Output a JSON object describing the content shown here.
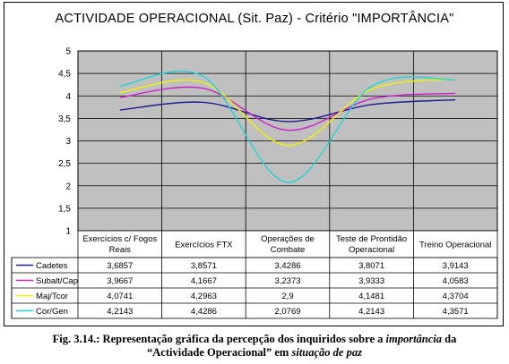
{
  "chart_data": {
    "type": "line",
    "title": "ACTIVIDADE OPERACIONAL (Sit. Paz) - Critério \"IMPORTÂNCIA\"",
    "categories": [
      [
        "Exercícios c/ Fogos",
        "Reais"
      ],
      [
        "Exercícios FTX"
      ],
      [
        "Operações de",
        "Combate"
      ],
      [
        "Teste de Prontidão",
        "Operacional"
      ],
      [
        "Treino Operacional"
      ]
    ],
    "ylim": [
      1,
      5
    ],
    "yticks": [
      "1",
      "1,5",
      "2",
      "2,5",
      "3",
      "3,5",
      "4",
      "4,5",
      "5"
    ],
    "grid": true,
    "legend": "table-left",
    "series": [
      {
        "name": "Cadetes",
        "color": "#1F1F8F",
        "values": [
          3.6857,
          3.8571,
          3.4286,
          3.8071,
          3.9143
        ],
        "labels": [
          "3,6857",
          "3,8571",
          "3,4286",
          "3,8071",
          "3,9143"
        ]
      },
      {
        "name": "Subalt/Cap",
        "color": "#CC22CC",
        "values": [
          3.9667,
          4.1667,
          3.2373,
          3.9333,
          4.0583
        ],
        "labels": [
          "3,9667",
          "4,1667",
          "3,2373",
          "3,9333",
          "4,0583"
        ]
      },
      {
        "name": "Maj/Tcor",
        "color": "#F2F200",
        "values": [
          4.0741,
          4.2963,
          2.9,
          4.1481,
          4.3704
        ],
        "labels": [
          "4,0741",
          "4,2963",
          "2,9",
          "4,1481",
          "4,3704"
        ]
      },
      {
        "name": "Cor/Gen",
        "color": "#22D3D3",
        "values": [
          4.2143,
          4.4286,
          2.0769,
          4.2143,
          4.3571
        ],
        "labels": [
          "4,2143",
          "4,4286",
          "2,0769",
          "4,2143",
          "4,3571"
        ]
      }
    ]
  },
  "caption": {
    "prefix": "Fig. 3.14.: Representação gráfica da percepção dos inquiridos sobre a ",
    "em1": "importância",
    "mid1": " da",
    "line2a": "“Actividade Operacional” em ",
    "em2": "situação de paz"
  },
  "colors": {
    "plot_bg": "#C0C0C0",
    "grid": "#000000"
  }
}
